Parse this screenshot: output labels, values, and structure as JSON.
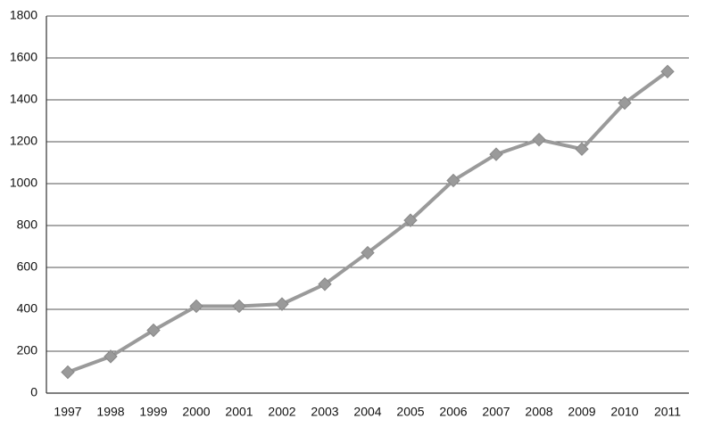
{
  "chart_data": {
    "type": "line",
    "categories": [
      "1997",
      "1998",
      "1999",
      "2000",
      "2001",
      "2002",
      "2003",
      "2004",
      "2005",
      "2006",
      "2007",
      "2008",
      "2009",
      "2010",
      "2011"
    ],
    "values": [
      100,
      175,
      300,
      415,
      415,
      425,
      520,
      670,
      825,
      1015,
      1140,
      1210,
      1165,
      1385,
      1535
    ],
    "color": "#9a9a9a",
    "ylim": [
      0,
      1800
    ],
    "yticks": [
      0,
      200,
      400,
      600,
      800,
      1000,
      1200,
      1400,
      1600,
      1800
    ],
    "grid": true
  }
}
